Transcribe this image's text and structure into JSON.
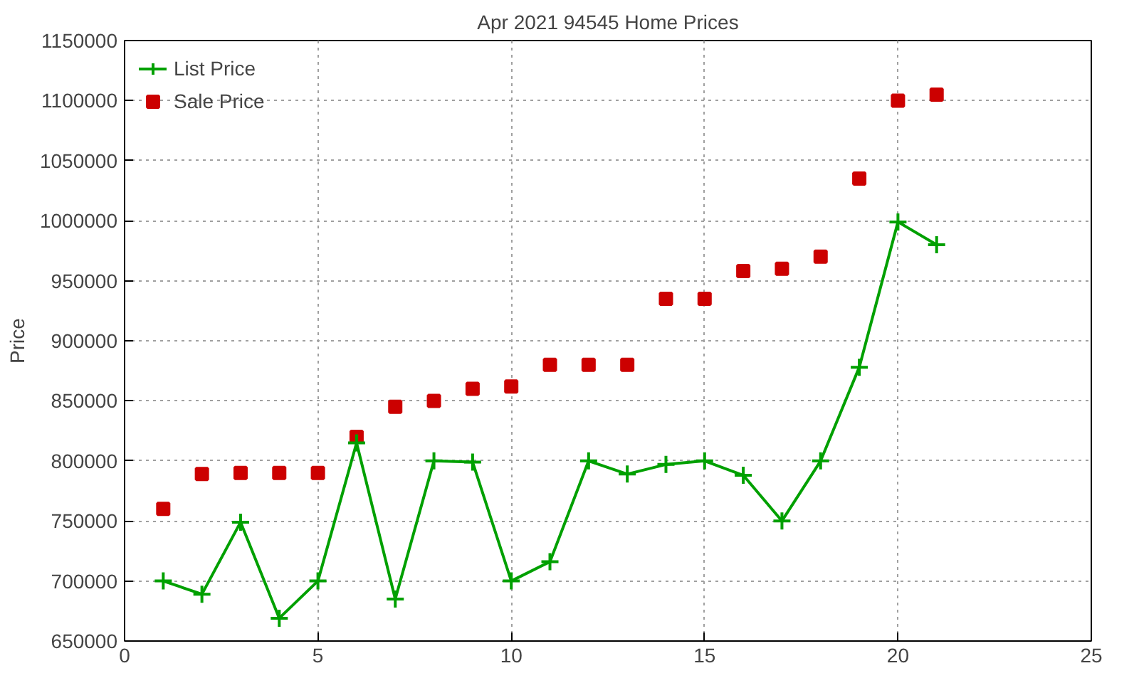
{
  "chart_data": {
    "type": "line",
    "title": "Apr 2021 94545 Home Prices",
    "ylabel": "Price",
    "x": [
      1,
      2,
      3,
      4,
      5,
      6,
      7,
      8,
      9,
      10,
      11,
      12,
      13,
      14,
      15,
      16,
      17,
      18,
      19,
      20,
      21
    ],
    "series": [
      {
        "name": "List Price",
        "color": "#00a000",
        "marker": "cross",
        "values": [
          700000,
          689000,
          749000,
          669000,
          700000,
          815000,
          685000,
          800000,
          799000,
          700000,
          716000,
          800000,
          789000,
          797000,
          800000,
          788000,
          750000,
          800000,
          878000,
          999000,
          980000
        ]
      },
      {
        "name": "Sale Price",
        "type": "scatter",
        "color": "#cc0000",
        "marker": "square",
        "values": [
          760000,
          789000,
          790000,
          790000,
          790000,
          820000,
          845000,
          850000,
          860000,
          862000,
          880000,
          880000,
          880000,
          935000,
          935000,
          958000,
          960000,
          970000,
          1035000,
          1100000,
          1105000
        ]
      }
    ],
    "xlim": [
      0,
      25
    ],
    "xticks": [
      0,
      5,
      10,
      15,
      20,
      25
    ],
    "ylim": [
      650000,
      1150000
    ],
    "yticks": [
      650000,
      700000,
      750000,
      800000,
      850000,
      900000,
      950000,
      1000000,
      1050000,
      1100000,
      1150000
    ],
    "grid": true,
    "legend": "top left"
  }
}
